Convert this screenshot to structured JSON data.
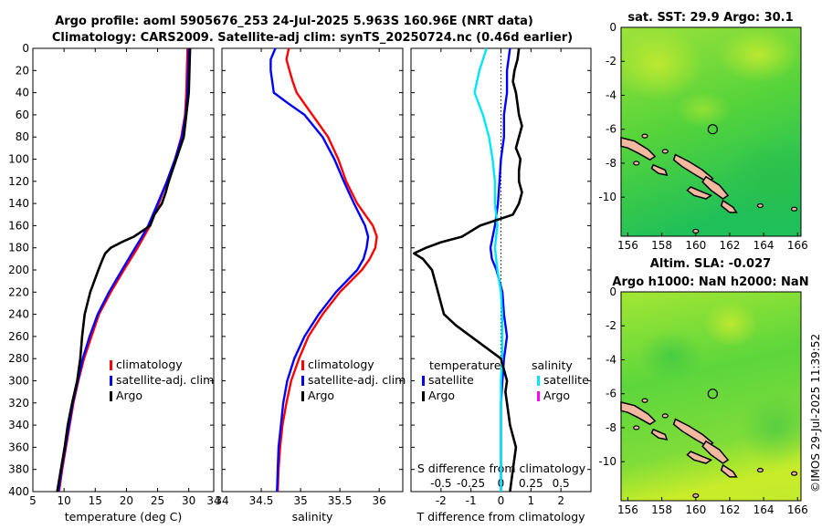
{
  "title_line1": "Argo profile: aoml 5905676_253 24-Jul-2025 5.963S 160.96E (NRT data)",
  "title_line2": "Climatology: CARS2009. Satellite-adj clim: synTS_20250724.nc (0.46d earlier)",
  "watermark": "©IMOS 29-Jul-2025 11:39:52",
  "colors": {
    "climatology": "#ff0000",
    "satellite": "#0000ff",
    "argo": "#000000",
    "sal_satellite": "#00e5ff",
    "sal_argo": "#ff00ff"
  },
  "chart_data": [
    {
      "type": "line",
      "name": "temperature-profile",
      "xlabel": "temperature (deg C)",
      "xlim": [
        5,
        34
      ],
      "xticks": [
        "5",
        "10",
        "15",
        "20",
        "25",
        "30",
        "34"
      ],
      "ylim": [
        0,
        400
      ],
      "yticks": [
        "0",
        "20",
        "40",
        "60",
        "80",
        "100",
        "120",
        "140",
        "160",
        "180",
        "200",
        "220",
        "240",
        "260",
        "280",
        "300",
        "320",
        "340",
        "360",
        "380",
        "400"
      ],
      "legend": [
        "climatology",
        "satellite-adj. clim",
        "Argo"
      ],
      "series": [
        {
          "name": "climatology",
          "depth": [
            0,
            20,
            40,
            60,
            80,
            100,
            120,
            140,
            160,
            170,
            180,
            200,
            220,
            240,
            260,
            280,
            300,
            320,
            340,
            360,
            380,
            400
          ],
          "values": [
            29.8,
            29.7,
            29.6,
            29.4,
            28.8,
            27.8,
            26.5,
            25.2,
            23.8,
            22.8,
            21.8,
            19.6,
            17.5,
            15.6,
            14.4,
            13.2,
            12.3,
            11.5,
            10.9,
            10.3,
            9.7,
            9.2
          ]
        },
        {
          "name": "satellite-adj. clim",
          "depth": [
            0,
            20,
            40,
            60,
            80,
            100,
            120,
            140,
            160,
            170,
            180,
            200,
            220,
            240,
            260,
            280,
            300,
            320,
            340,
            360,
            380,
            400
          ],
          "values": [
            30.0,
            29.9,
            29.8,
            29.5,
            28.9,
            27.8,
            26.5,
            25.0,
            23.5,
            22.5,
            21.4,
            19.3,
            17.2,
            15.4,
            14.1,
            13.0,
            12.2,
            11.4,
            10.8,
            10.2,
            9.6,
            9.1
          ]
        },
        {
          "name": "Argo",
          "depth": [
            0,
            20,
            40,
            60,
            80,
            100,
            120,
            130,
            140,
            150,
            160,
            170,
            175,
            180,
            185,
            190,
            200,
            220,
            240,
            260,
            280,
            300,
            320,
            340,
            360,
            380,
            400
          ],
          "values": [
            30.2,
            30.1,
            30.0,
            29.6,
            29.2,
            28.0,
            26.8,
            26.3,
            25.7,
            24.5,
            23.8,
            21.2,
            19.2,
            17.5,
            16.6,
            16.2,
            15.5,
            14.2,
            13.3,
            12.9,
            12.6,
            12.1,
            11.3,
            10.6,
            10.1,
            9.5,
            8.9
          ]
        }
      ]
    },
    {
      "type": "line",
      "name": "salinity-profile",
      "xlabel": "salinity",
      "xlim": [
        34,
        36.3
      ],
      "xticks": [
        "34",
        "34.5",
        "35",
        "35.5",
        "36"
      ],
      "ylim": [
        0,
        400
      ],
      "legend": [
        "climatology",
        "satellite-adj. clim",
        "Argo"
      ],
      "series": [
        {
          "name": "climatology",
          "depth": [
            0,
            10,
            20,
            30,
            40,
            50,
            60,
            80,
            100,
            120,
            140,
            160,
            170,
            180,
            190,
            200,
            220,
            240,
            260,
            280,
            300,
            320,
            340,
            360,
            380,
            400
          ],
          "values": [
            34.85,
            34.82,
            34.86,
            34.9,
            34.95,
            35.05,
            35.15,
            35.35,
            35.48,
            35.58,
            35.72,
            35.92,
            35.97,
            35.95,
            35.88,
            35.78,
            35.5,
            35.28,
            35.1,
            34.98,
            34.88,
            34.82,
            34.77,
            34.74,
            34.72,
            34.71
          ]
        },
        {
          "name": "satellite-adj. clim",
          "depth": [
            0,
            10,
            20,
            30,
            40,
            50,
            60,
            80,
            100,
            120,
            140,
            160,
            170,
            180,
            190,
            200,
            220,
            240,
            260,
            280,
            300,
            320,
            340,
            360,
            380,
            400
          ],
          "values": [
            34.68,
            34.62,
            34.62,
            34.64,
            34.66,
            34.85,
            35.05,
            35.28,
            35.43,
            35.55,
            35.68,
            35.82,
            35.86,
            35.84,
            35.8,
            35.72,
            35.45,
            35.23,
            35.05,
            34.92,
            34.83,
            34.78,
            34.75,
            34.72,
            34.71,
            34.7
          ]
        }
      ]
    },
    {
      "type": "line",
      "name": "difference-profile",
      "xlabel": "T difference from climatology",
      "xlabel_top": "S difference from climatology",
      "xlim": [
        -3,
        3
      ],
      "xticks": [
        "-2",
        "-1",
        "0",
        "1",
        "2"
      ],
      "xticks_top": [
        "-0.5",
        "-0.25",
        "0",
        "0.25",
        "0.5"
      ],
      "ylim": [
        0,
        400
      ],
      "legend_left_title": "temperature",
      "legend_right_title": "salinity",
      "legend_left": [
        "satellite",
        "Argo"
      ],
      "legend_right": [
        "satellite",
        "Argo"
      ],
      "series": [
        {
          "name": "T satellite",
          "depth": [
            0,
            20,
            40,
            60,
            80,
            100,
            120,
            140,
            160,
            180,
            190,
            200,
            220,
            240,
            260,
            280,
            300,
            320,
            340,
            360,
            380,
            400
          ],
          "values": [
            0.3,
            0.2,
            0.2,
            0.1,
            0.1,
            0.0,
            -0.05,
            -0.1,
            -0.2,
            -0.35,
            -0.3,
            -0.15,
            0.05,
            0.1,
            0.2,
            0.1,
            0.05,
            0.0,
            0.0,
            0.0,
            0.0,
            0.0
          ]
        },
        {
          "name": "S satellite",
          "depth": [
            0,
            10,
            20,
            30,
            40,
            60,
            80,
            100,
            120,
            140,
            150,
            160,
            170,
            180,
            200,
            220,
            240,
            260,
            280,
            300,
            320,
            340,
            360,
            380,
            400
          ],
          "values": [
            -0.12,
            -0.15,
            -0.18,
            -0.2,
            -0.22,
            -0.15,
            -0.1,
            -0.07,
            -0.05,
            -0.05,
            -0.04,
            -0.03,
            -0.04,
            -0.05,
            -0.03,
            0.0,
            0.01,
            0.01,
            0.01,
            0.0,
            0.0,
            0.0,
            0.0,
            0.0,
            0.0
          ]
        },
        {
          "name": "T Argo",
          "depth": [
            0,
            10,
            20,
            30,
            40,
            50,
            60,
            70,
            80,
            90,
            100,
            110,
            120,
            130,
            140,
            150,
            160,
            170,
            175,
            180,
            185,
            190,
            200,
            210,
            220,
            230,
            240,
            250,
            260,
            270,
            280,
            290,
            300,
            310,
            320,
            340,
            360,
            380,
            400
          ],
          "values": [
            0.6,
            0.55,
            0.45,
            0.4,
            0.5,
            0.55,
            0.6,
            0.7,
            0.6,
            0.5,
            0.65,
            0.6,
            0.6,
            0.7,
            0.6,
            0.4,
            -0.7,
            -1.3,
            -2.0,
            -2.5,
            -2.9,
            -2.6,
            -2.3,
            -2.2,
            -2.1,
            -2.0,
            -1.9,
            -1.5,
            -1.0,
            -0.5,
            0.0,
            0.1,
            0.2,
            0.15,
            0.2,
            0.3,
            0.5,
            0.4,
            0.3
          ]
        }
      ]
    },
    {
      "type": "heatmap",
      "name": "sst-map",
      "title": "sat. SST: 29.9 Argo: 30.1",
      "xticks": [
        "156",
        "158",
        "160",
        "162",
        "164",
        "166"
      ],
      "yticks": [
        "0",
        "-2",
        "-4",
        "-6",
        "-8",
        "-10"
      ],
      "xlim": [
        156,
        166
      ],
      "ylim": [
        -12,
        0
      ],
      "marker": [
        161,
        -6
      ],
      "values": [
        [
          29.6,
          29.7,
          29.8,
          29.7
        ],
        [
          29.8,
          29.9,
          30.0,
          29.9
        ],
        [
          30.0,
          30.1,
          30.2,
          30.0
        ]
      ]
    },
    {
      "type": "heatmap",
      "name": "sla-map",
      "title": "Altim. SLA: -0.027",
      "subtitle": "Argo h1000: NaN h2000: NaN",
      "xticks": [
        "156",
        "158",
        "160",
        "162",
        "164",
        "166"
      ],
      "yticks": [
        "0",
        "-2",
        "-4",
        "-6",
        "-8",
        "-10"
      ],
      "xlim": [
        156,
        166
      ],
      "ylim": [
        -12,
        0
      ],
      "marker": [
        161,
        -6
      ],
      "values": [
        [
          -0.03,
          -0.02,
          -0.03,
          -0.04
        ],
        [
          -0.02,
          -0.03,
          -0.02,
          -0.03
        ],
        [
          -0.01,
          -0.02,
          -0.03,
          -0.02
        ]
      ]
    }
  ]
}
